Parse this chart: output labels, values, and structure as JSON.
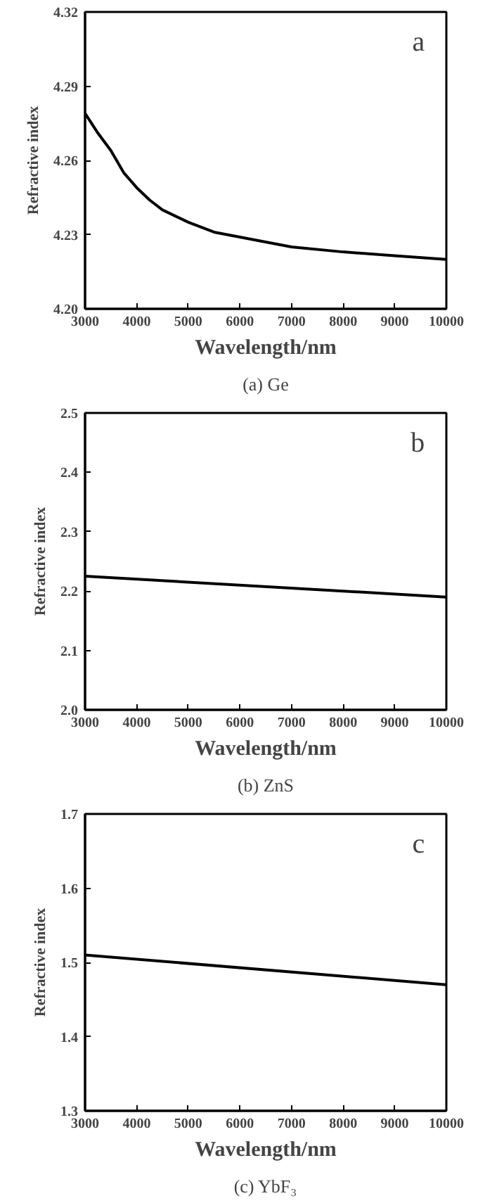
{
  "chart_data": [
    {
      "type": "line",
      "title": "a",
      "xlabel": "Wavelength/nm",
      "ylabel": "Refractive index",
      "annotations": [
        "(a) Ge"
      ],
      "x": [
        3000,
        3250,
        3500,
        3750,
        4000,
        4250,
        4500,
        5000,
        5500,
        6000,
        6500,
        7000,
        8000,
        9000,
        10000
      ],
      "series": [
        {
          "color": "#000000",
          "values": [
            4.279,
            4.271,
            4.264,
            4.255,
            4.249,
            4.244,
            4.24,
            4.235,
            4.231,
            4.229,
            4.227,
            4.225,
            4.223,
            4.2215,
            4.22
          ]
        }
      ],
      "xlim": [
        3000,
        10000
      ],
      "ylim": [
        4.2,
        4.32
      ],
      "xticks": [
        3000,
        4000,
        5000,
        6000,
        7000,
        8000,
        9000,
        10000
      ],
      "yticks": [
        {
          "value": 4.2,
          "label": "4.20"
        },
        4.23,
        4.26,
        4.29,
        4.32
      ],
      "grid": false
    },
    {
      "type": "line",
      "title": "b",
      "xlabel": "Wavelength/nm",
      "ylabel": "Refractive index",
      "annotations": [
        "(b) ZnS"
      ],
      "x": [
        3000,
        10000
      ],
      "series": [
        {
          "color": "#000000",
          "values": [
            2.225,
            2.19
          ]
        }
      ],
      "xlim": [
        3000,
        10000
      ],
      "ylim": [
        2.0,
        2.5
      ],
      "xticks": [
        3000,
        4000,
        5000,
        6000,
        7000,
        8000,
        9000,
        10000
      ],
      "yticks": [
        {
          "value": 2.0,
          "label": "2.0"
        },
        2.1,
        2.2,
        2.3,
        2.4,
        2.5
      ],
      "grid": false
    },
    {
      "type": "line",
      "title": "c",
      "xlabel": "Wavelength/nm",
      "ylabel": "Refractive index",
      "annotations": [
        "(c) YbF₃"
      ],
      "x": [
        3000,
        10000
      ],
      "series": [
        {
          "color": "#000000",
          "values": [
            1.51,
            1.47
          ]
        }
      ],
      "xlim": [
        3000,
        10000
      ],
      "ylim": [
        1.3,
        1.7
      ],
      "xticks": [
        3000,
        4000,
        5000,
        6000,
        7000,
        8000,
        9000,
        10000
      ],
      "yticks": [
        1.3,
        1.4,
        1.5,
        1.6,
        1.7
      ],
      "grid": false
    }
  ]
}
